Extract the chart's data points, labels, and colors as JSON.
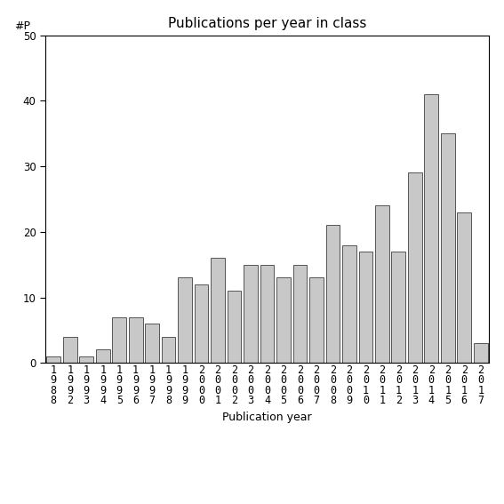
{
  "title": "Publications per year in class",
  "xlabel": "Publication year",
  "ylabel": "#P",
  "ylim": [
    0,
    50
  ],
  "yticks": [
    0,
    10,
    20,
    30,
    40,
    50
  ],
  "categories": [
    "1\n9\n8\n8",
    "1\n9\n9\n2",
    "1\n9\n9\n3",
    "1\n9\n9\n4",
    "1\n9\n9\n5",
    "1\n9\n9\n6",
    "1\n9\n9\n7",
    "1\n9\n9\n8",
    "1\n9\n9\n9",
    "2\n0\n0\n0",
    "2\n0\n0\n1",
    "2\n0\n0\n2",
    "2\n0\n0\n3",
    "2\n0\n0\n4",
    "2\n0\n0\n5",
    "2\n0\n0\n6",
    "2\n0\n0\n7",
    "2\n0\n0\n8",
    "2\n0\n0\n9",
    "2\n0\n1\n0",
    "2\n0\n1\n1",
    "2\n0\n1\n2",
    "2\n0\n1\n3",
    "2\n0\n1\n4",
    "2\n0\n1\n5",
    "2\n0\n1\n6",
    "2\n0\n1\n7"
  ],
  "values": [
    1,
    4,
    1,
    2,
    7,
    7,
    6,
    4,
    13,
    12,
    16,
    11,
    15,
    15,
    13,
    15,
    13,
    21,
    18,
    17,
    24,
    17,
    29,
    41,
    35,
    23,
    3
  ],
  "bar_color": "#c8c8c8",
  "bar_edge_color": "#555555",
  "background_color": "#ffffff",
  "title_fontsize": 11,
  "label_fontsize": 9,
  "tick_fontsize": 8.5
}
